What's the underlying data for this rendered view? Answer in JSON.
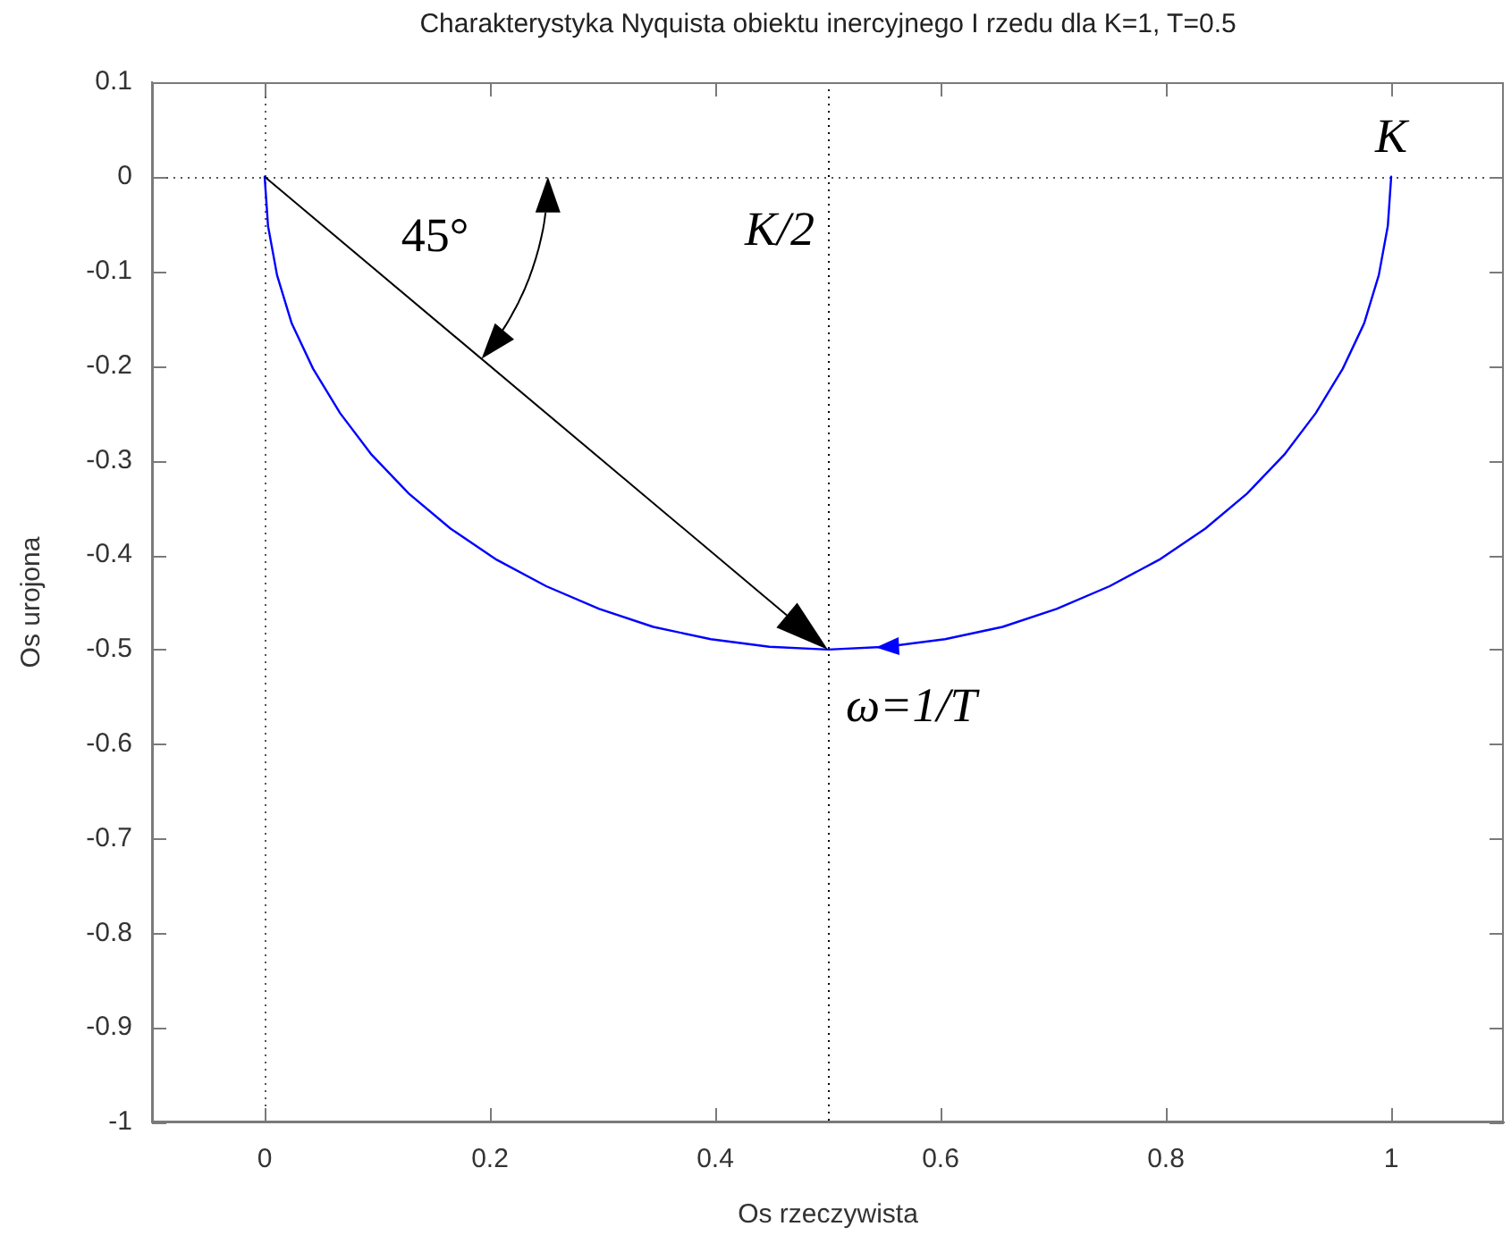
{
  "chart_data": {
    "type": "line",
    "title": "Charakterystyka Nyquista obiektu inercyjnego I rzedu dla K=1, T=0.5",
    "xlabel": "Os rzeczywista",
    "ylabel": "Os urojona",
    "x": [
      1,
      0.997,
      0.989,
      0.976,
      0.957,
      0.933,
      0.905,
      0.872,
      0.835,
      0.794,
      0.75,
      0.703,
      0.655,
      0.604,
      0.552,
      0.5,
      0.448,
      0.396,
      0.345,
      0.297,
      0.25,
      0.206,
      0.165,
      0.128,
      0.095,
      0.067,
      0.043,
      0.024,
      0.011,
      0.003,
      0
    ],
    "series": [
      {
        "color": "#0000ff",
        "values": [
          0,
          -0.052,
          -0.104,
          -0.155,
          -0.203,
          -0.25,
          -0.294,
          -0.335,
          -0.372,
          -0.405,
          -0.433,
          -0.457,
          -0.476,
          -0.489,
          -0.497,
          -0.5,
          -0.497,
          -0.489,
          -0.476,
          -0.457,
          -0.433,
          -0.405,
          -0.372,
          -0.335,
          -0.294,
          -0.25,
          -0.203,
          -0.155,
          -0.104,
          -0.052,
          0
        ]
      }
    ],
    "xlim": [
      -0.1,
      1.1
    ],
    "xticks": [
      0,
      0.2,
      0.4,
      0.6,
      0.8,
      1
    ],
    "ylim": [
      -1,
      0.1
    ],
    "yticks": [
      -1,
      -0.9,
      -0.8,
      -0.7,
      -0.6,
      -0.5,
      -0.4,
      -0.3,
      -0.2,
      -0.1,
      0,
      0.1
    ],
    "ref_lines": [
      {
        "axis": "x",
        "value": 0,
        "color": "#555555",
        "line_style": "dotted"
      },
      {
        "axis": "y",
        "value": 0,
        "color": "#555555",
        "line_style": "dotted"
      },
      {
        "axis": "x",
        "value": 0.5,
        "label": "K/2",
        "color": "#000000",
        "line_style": "dotted"
      }
    ],
    "annotations": [
      {
        "text": "K",
        "x": 1,
        "y": 0
      },
      "45°",
      {
        "text": "ω=1/T",
        "x": 0.5,
        "y": -0.5
      }
    ]
  }
}
